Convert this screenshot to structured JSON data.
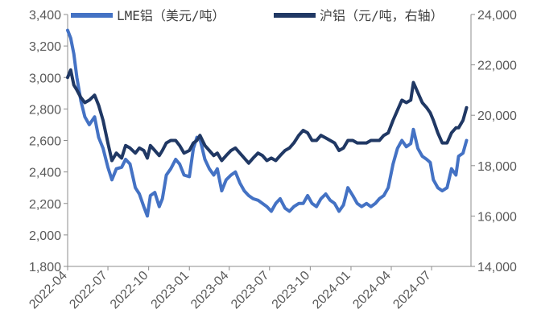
{
  "chart_data": {
    "type": "line",
    "title": "",
    "x": {
      "start": "2022-04",
      "end": "2024-09",
      "ticks": [
        "2022-04",
        "2022-07",
        "2022-10",
        "2023-01",
        "2023-04",
        "2023-07",
        "2023-10",
        "2024-01",
        "2024-04",
        "2024-07"
      ]
    },
    "y_left": {
      "label": "",
      "range": [
        1800,
        3400
      ],
      "ticks": [
        1800,
        2000,
        2200,
        2400,
        2600,
        2800,
        3000,
        3200,
        3400
      ],
      "tick_labels": [
        "1,800",
        "2,000",
        "2,200",
        "2,400",
        "2,600",
        "2,800",
        "3,000",
        "3,200",
        "3,400"
      ]
    },
    "y_right": {
      "label": "",
      "range": [
        14000,
        24000
      ],
      "ticks": [
        14000,
        16000,
        18000,
        20000,
        22000,
        24000
      ],
      "tick_labels": [
        "14,000",
        "16,000",
        "18,000",
        "20,000",
        "22,000",
        "24,000"
      ]
    },
    "legend": {
      "placement": "top"
    },
    "grid": false,
    "series": [
      {
        "name": "LME铝（美元/吨）",
        "axis": "left",
        "color": "#4472c4",
        "points": [
          [
            "2022-04-01",
            3300
          ],
          [
            "2022-04-08",
            3250
          ],
          [
            "2022-04-15",
            3150
          ],
          [
            "2022-04-22",
            3000
          ],
          [
            "2022-05-01",
            2850
          ],
          [
            "2022-05-10",
            2750
          ],
          [
            "2022-05-20",
            2700
          ],
          [
            "2022-06-01",
            2750
          ],
          [
            "2022-06-10",
            2620
          ],
          [
            "2022-06-20",
            2550
          ],
          [
            "2022-07-01",
            2430
          ],
          [
            "2022-07-10",
            2350
          ],
          [
            "2022-07-20",
            2420
          ],
          [
            "2022-08-01",
            2430
          ],
          [
            "2022-08-10",
            2480
          ],
          [
            "2022-08-20",
            2450
          ],
          [
            "2022-09-01",
            2300
          ],
          [
            "2022-09-10",
            2260
          ],
          [
            "2022-09-20",
            2180
          ],
          [
            "2022-09-28",
            2120
          ],
          [
            "2022-10-05",
            2250
          ],
          [
            "2022-10-15",
            2270
          ],
          [
            "2022-10-25",
            2180
          ],
          [
            "2022-11-01",
            2230
          ],
          [
            "2022-11-10",
            2380
          ],
          [
            "2022-11-20",
            2420
          ],
          [
            "2022-12-01",
            2480
          ],
          [
            "2022-12-10",
            2450
          ],
          [
            "2022-12-20",
            2380
          ],
          [
            "2023-01-01",
            2370
          ],
          [
            "2023-01-10",
            2550
          ],
          [
            "2023-01-18",
            2620
          ],
          [
            "2023-01-25",
            2610
          ],
          [
            "2023-02-05",
            2480
          ],
          [
            "2023-02-15",
            2420
          ],
          [
            "2023-02-25",
            2380
          ],
          [
            "2023-03-05",
            2420
          ],
          [
            "2023-03-15",
            2280
          ],
          [
            "2023-03-25",
            2350
          ],
          [
            "2023-04-05",
            2380
          ],
          [
            "2023-04-15",
            2400
          ],
          [
            "2023-04-25",
            2330
          ],
          [
            "2023-05-05",
            2280
          ],
          [
            "2023-05-15",
            2250
          ],
          [
            "2023-05-25",
            2230
          ],
          [
            "2023-06-05",
            2220
          ],
          [
            "2023-06-15",
            2200
          ],
          [
            "2023-06-25",
            2180
          ],
          [
            "2023-07-05",
            2150
          ],
          [
            "2023-07-15",
            2200
          ],
          [
            "2023-07-25",
            2230
          ],
          [
            "2023-08-05",
            2170
          ],
          [
            "2023-08-15",
            2150
          ],
          [
            "2023-08-25",
            2180
          ],
          [
            "2023-09-05",
            2200
          ],
          [
            "2023-09-15",
            2200
          ],
          [
            "2023-09-25",
            2250
          ],
          [
            "2023-10-05",
            2200
          ],
          [
            "2023-10-15",
            2180
          ],
          [
            "2023-10-25",
            2230
          ],
          [
            "2023-11-05",
            2260
          ],
          [
            "2023-11-15",
            2220
          ],
          [
            "2023-11-25",
            2200
          ],
          [
            "2023-12-05",
            2150
          ],
          [
            "2023-12-15",
            2190
          ],
          [
            "2023-12-25",
            2300
          ],
          [
            "2024-01-05",
            2250
          ],
          [
            "2024-01-15",
            2200
          ],
          [
            "2024-01-25",
            2180
          ],
          [
            "2024-02-05",
            2200
          ],
          [
            "2024-02-15",
            2180
          ],
          [
            "2024-02-25",
            2200
          ],
          [
            "2024-03-05",
            2230
          ],
          [
            "2024-03-15",
            2250
          ],
          [
            "2024-03-25",
            2300
          ],
          [
            "2024-04-05",
            2450
          ],
          [
            "2024-04-15",
            2550
          ],
          [
            "2024-04-25",
            2600
          ],
          [
            "2024-05-05",
            2560
          ],
          [
            "2024-05-15",
            2580
          ],
          [
            "2024-05-21",
            2670
          ],
          [
            "2024-05-31",
            2550
          ],
          [
            "2024-06-10",
            2500
          ],
          [
            "2024-06-20",
            2480
          ],
          [
            "2024-06-28",
            2460
          ],
          [
            "2024-07-05",
            2350
          ],
          [
            "2024-07-15",
            2300
          ],
          [
            "2024-07-25",
            2280
          ],
          [
            "2024-08-05",
            2300
          ],
          [
            "2024-08-15",
            2420
          ],
          [
            "2024-08-25",
            2380
          ],
          [
            "2024-08-31",
            2500
          ],
          [
            "2024-09-10",
            2520
          ],
          [
            "2024-09-18",
            2600
          ]
        ]
      },
      {
        "name": "沪铝（元/吨，右轴）",
        "axis": "right",
        "color": "#203864",
        "points": [
          [
            "2022-04-01",
            21500
          ],
          [
            "2022-04-08",
            21800
          ],
          [
            "2022-04-15",
            21200
          ],
          [
            "2022-04-22",
            21000
          ],
          [
            "2022-05-01",
            20700
          ],
          [
            "2022-05-10",
            20500
          ],
          [
            "2022-05-20",
            20600
          ],
          [
            "2022-06-01",
            20800
          ],
          [
            "2022-06-10",
            20400
          ],
          [
            "2022-06-20",
            19800
          ],
          [
            "2022-07-01",
            18900
          ],
          [
            "2022-07-10",
            18200
          ],
          [
            "2022-07-20",
            18500
          ],
          [
            "2022-08-01",
            18300
          ],
          [
            "2022-08-10",
            18800
          ],
          [
            "2022-08-20",
            18700
          ],
          [
            "2022-09-01",
            18500
          ],
          [
            "2022-09-10",
            18700
          ],
          [
            "2022-09-20",
            18600
          ],
          [
            "2022-09-28",
            18300
          ],
          [
            "2022-10-05",
            18800
          ],
          [
            "2022-10-15",
            18600
          ],
          [
            "2022-10-25",
            18400
          ],
          [
            "2022-11-01",
            18600
          ],
          [
            "2022-11-10",
            18900
          ],
          [
            "2022-11-20",
            19000
          ],
          [
            "2022-12-01",
            19000
          ],
          [
            "2022-12-10",
            18800
          ],
          [
            "2022-12-20",
            18500
          ],
          [
            "2023-01-01",
            18600
          ],
          [
            "2023-01-10",
            18900
          ],
          [
            "2023-01-18",
            19000
          ],
          [
            "2023-01-25",
            19200
          ],
          [
            "2023-02-05",
            18800
          ],
          [
            "2023-02-15",
            18600
          ],
          [
            "2023-02-25",
            18400
          ],
          [
            "2023-03-05",
            18500
          ],
          [
            "2023-03-15",
            18200
          ],
          [
            "2023-03-25",
            18400
          ],
          [
            "2023-04-05",
            18600
          ],
          [
            "2023-04-15",
            18700
          ],
          [
            "2023-04-25",
            18500
          ],
          [
            "2023-05-05",
            18300
          ],
          [
            "2023-05-15",
            18100
          ],
          [
            "2023-05-25",
            18300
          ],
          [
            "2023-06-05",
            18500
          ],
          [
            "2023-06-15",
            18400
          ],
          [
            "2023-06-25",
            18200
          ],
          [
            "2023-07-05",
            18300
          ],
          [
            "2023-07-15",
            18200
          ],
          [
            "2023-07-25",
            18400
          ],
          [
            "2023-08-05",
            18600
          ],
          [
            "2023-08-15",
            18700
          ],
          [
            "2023-08-25",
            18900
          ],
          [
            "2023-09-05",
            19200
          ],
          [
            "2023-09-15",
            19400
          ],
          [
            "2023-09-25",
            19300
          ],
          [
            "2023-10-05",
            19000
          ],
          [
            "2023-10-15",
            19000
          ],
          [
            "2023-10-25",
            19200
          ],
          [
            "2023-11-05",
            19100
          ],
          [
            "2023-11-15",
            19000
          ],
          [
            "2023-11-25",
            18900
          ],
          [
            "2023-12-05",
            18600
          ],
          [
            "2023-12-15",
            18700
          ],
          [
            "2023-12-25",
            19000
          ],
          [
            "2024-01-05",
            19000
          ],
          [
            "2024-01-15",
            18900
          ],
          [
            "2024-01-25",
            18900
          ],
          [
            "2024-02-05",
            18900
          ],
          [
            "2024-02-15",
            19000
          ],
          [
            "2024-02-25",
            19000
          ],
          [
            "2024-03-05",
            19000
          ],
          [
            "2024-03-15",
            19200
          ],
          [
            "2024-03-25",
            19300
          ],
          [
            "2024-04-05",
            19800
          ],
          [
            "2024-04-15",
            20200
          ],
          [
            "2024-04-25",
            20600
          ],
          [
            "2024-05-05",
            20500
          ],
          [
            "2024-05-15",
            20600
          ],
          [
            "2024-05-21",
            21300
          ],
          [
            "2024-05-31",
            20900
          ],
          [
            "2024-06-10",
            20500
          ],
          [
            "2024-06-20",
            20300
          ],
          [
            "2024-06-28",
            20100
          ],
          [
            "2024-07-05",
            19800
          ],
          [
            "2024-07-15",
            19300
          ],
          [
            "2024-07-25",
            18900
          ],
          [
            "2024-08-05",
            18900
          ],
          [
            "2024-08-15",
            19300
          ],
          [
            "2024-08-25",
            19500
          ],
          [
            "2024-08-31",
            19500
          ],
          [
            "2024-09-10",
            19800
          ],
          [
            "2024-09-18",
            20300
          ]
        ]
      }
    ]
  }
}
